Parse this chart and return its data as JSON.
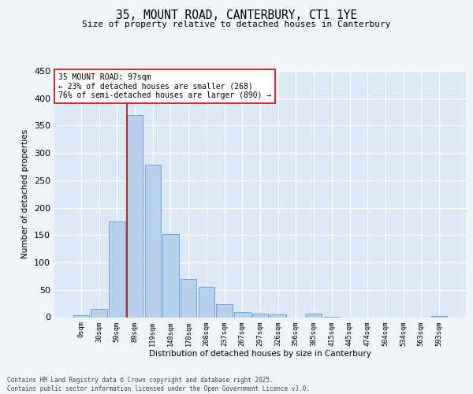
{
  "title1": "35, MOUNT ROAD, CANTERBURY, CT1 1YE",
  "title2": "Size of property relative to detached houses in Canterbury",
  "xlabel": "Distribution of detached houses by size in Canterbury",
  "ylabel": "Number of detached properties",
  "bar_labels": [
    "0sqm",
    "30sqm",
    "59sqm",
    "89sqm",
    "119sqm",
    "148sqm",
    "178sqm",
    "208sqm",
    "237sqm",
    "267sqm",
    "297sqm",
    "326sqm",
    "356sqm",
    "385sqm",
    "415sqm",
    "445sqm",
    "474sqm",
    "504sqm",
    "534sqm",
    "563sqm",
    "593sqm"
  ],
  "bar_values": [
    3,
    15,
    175,
    370,
    278,
    152,
    70,
    55,
    24,
    9,
    6,
    5,
    0,
    7,
    1,
    0,
    0,
    0,
    0,
    0,
    2
  ],
  "bar_color": "#b8d0ea",
  "bar_edge_color": "#5b9bd5",
  "bg_color": "#dce8f5",
  "grid_color": "#ffffff",
  "vline_color": "#cc0000",
  "annotation_text": "35 MOUNT ROAD: 97sqm\n← 23% of detached houses are smaller (268)\n76% of semi-detached houses are larger (890) →",
  "annotation_box_color": "#ffffff",
  "annotation_box_edge": "#cc0000",
  "ylim": [
    0,
    450
  ],
  "yticks": [
    0,
    50,
    100,
    150,
    200,
    250,
    300,
    350,
    400,
    450
  ],
  "footer1": "Contains HM Land Registry data © Crown copyright and database right 2025.",
  "footer2": "Contains public sector information licensed under the Open Government Licence v3.0."
}
